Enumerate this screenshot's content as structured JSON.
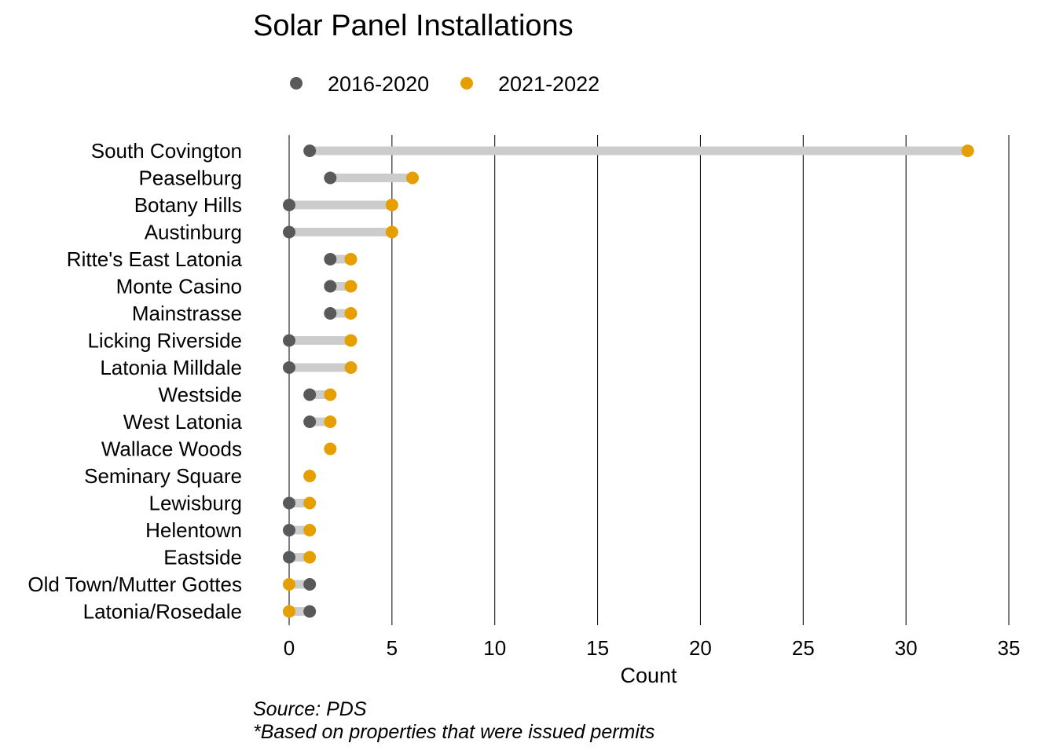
{
  "chart_data": {
    "type": "dumbbell",
    "title": "Solar Panel Installations",
    "xlabel": "Count",
    "ylabel": "",
    "xlim": [
      0,
      35
    ],
    "xticks": [
      0,
      5,
      10,
      15,
      20,
      25,
      30,
      35
    ],
    "grid": "vertical major",
    "legend_position": "top",
    "categories": [
      "South Covington",
      "Peaselburg",
      "Botany Hills",
      "Austinburg",
      "Ritte's East Latonia",
      "Monte Casino",
      "Mainstrasse",
      "Licking Riverside",
      "Latonia Milldale",
      "Westside",
      "West Latonia",
      "Wallace Woods",
      "Seminary Square",
      "Lewisburg",
      "Helentown",
      "Eastside",
      "Old Town/Mutter Gottes",
      "Latonia/Rosedale"
    ],
    "series": [
      {
        "name": "2016-2020",
        "color": "#595959",
        "values": [
          1,
          2,
          0,
          0,
          2,
          2,
          2,
          0,
          0,
          1,
          1,
          null,
          null,
          0,
          0,
          0,
          1,
          1
        ]
      },
      {
        "name": "2021-2022",
        "color": "#E69F00",
        "values": [
          33,
          6,
          5,
          5,
          3,
          3,
          3,
          3,
          3,
          2,
          2,
          2,
          1,
          1,
          1,
          1,
          0,
          0
        ]
      }
    ],
    "segment_color": "#cccccc",
    "captions": [
      "Source: PDS",
      "*Based on properties that were issued permits"
    ]
  }
}
